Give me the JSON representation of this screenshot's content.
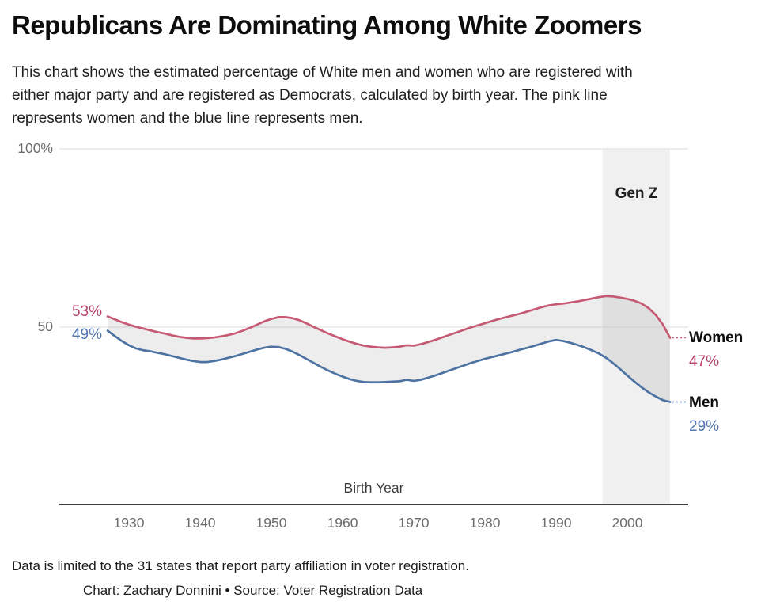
{
  "header": {
    "title": "Republicans Are Dominating Among White Zoomers",
    "subtitle_lines": [
      "This chart shows the estimated percentage of White men and women who are registered with",
      "either major party and are registered as Democrats, calculated by birth year. The pink line",
      "represents women and the blue line represents men."
    ]
  },
  "footer": {
    "note": "Data is limited to the 31 states that report party affiliation in voter registration.",
    "credit": "Chart: Zachary Donnini • Source: Voter Registration Data"
  },
  "chart_data": {
    "type": "line",
    "xlabel": "Birth Year",
    "ylabel": "",
    "ylim": [
      0,
      100
    ],
    "x_range": [
      1927,
      2006
    ],
    "x_tick_years": [
      1930,
      1940,
      1950,
      1960,
      1970,
      1980,
      1990,
      2000
    ],
    "y_ticks": [
      {
        "value": 100,
        "label": "100%"
      },
      {
        "value": 50,
        "label": "50"
      }
    ],
    "grid": "horizontal-only",
    "legend_position": "right-edge-direct-labels",
    "gen_z_band": {
      "label": "Gen Z",
      "start_year": 1997,
      "end_year": 2006
    },
    "band_fill_between_series": true,
    "colors": {
      "women_line": "#c75a73",
      "women_text": "#b5436a",
      "men_line": "#4d73a3",
      "men_text": "#5276ad",
      "band_fill": "rgba(0,0,0,0.072)",
      "genz_fill": "rgba(0,0,0,0.057)",
      "gridline": "#e2e2e2",
      "axis_line": "#3b3b3b"
    },
    "series": [
      {
        "name": "Women",
        "start_label": "53%",
        "end_label": "47%",
        "start_year": 1927,
        "values": [
          53.0,
          52.2,
          51.4,
          50.7,
          50.1,
          49.6,
          49.1,
          48.6,
          48.2,
          47.7,
          47.3,
          47.0,
          46.8,
          46.8,
          46.9,
          47.1,
          47.4,
          47.8,
          48.3,
          49.0,
          49.8,
          50.7,
          51.6,
          52.3,
          52.8,
          52.8,
          52.5,
          51.9,
          51.0,
          50.0,
          49.1,
          48.2,
          47.4,
          46.6,
          45.9,
          45.3,
          44.8,
          44.5,
          44.3,
          44.2,
          44.3,
          44.5,
          44.9,
          44.8,
          45.2,
          45.8,
          46.4,
          47.1,
          47.8,
          48.5,
          49.2,
          49.9,
          50.5,
          51.1,
          51.7,
          52.3,
          52.8,
          53.3,
          53.8,
          54.4,
          55.0,
          55.6,
          56.1,
          56.4,
          56.6,
          56.9,
          57.2,
          57.6,
          58.0,
          58.4,
          58.7,
          58.6,
          58.3,
          57.9,
          57.4,
          56.6,
          55.3,
          53.4,
          50.7,
          47.0
        ]
      },
      {
        "name": "Men",
        "start_label": "49%",
        "end_label": "29%",
        "start_year": 1927,
        "values": [
          49.0,
          47.5,
          46.1,
          44.9,
          44.0,
          43.5,
          43.2,
          42.8,
          42.4,
          41.9,
          41.4,
          40.9,
          40.5,
          40.2,
          40.2,
          40.5,
          40.9,
          41.4,
          41.9,
          42.5,
          43.1,
          43.7,
          44.2,
          44.5,
          44.4,
          43.9,
          43.1,
          42.1,
          41.0,
          39.9,
          38.8,
          37.8,
          36.9,
          36.1,
          35.4,
          34.9,
          34.6,
          34.5,
          34.5,
          34.6,
          34.7,
          34.8,
          35.2,
          34.9,
          35.2,
          35.8,
          36.4,
          37.1,
          37.8,
          38.5,
          39.2,
          39.9,
          40.5,
          41.1,
          41.6,
          42.1,
          42.6,
          43.1,
          43.7,
          44.2,
          44.8,
          45.4,
          46.0,
          46.4,
          46.1,
          45.6,
          45.0,
          44.3,
          43.5,
          42.6,
          41.4,
          39.9,
          38.2,
          36.4,
          34.7,
          33.1,
          31.7,
          30.5,
          29.5,
          29.0
        ]
      }
    ]
  }
}
